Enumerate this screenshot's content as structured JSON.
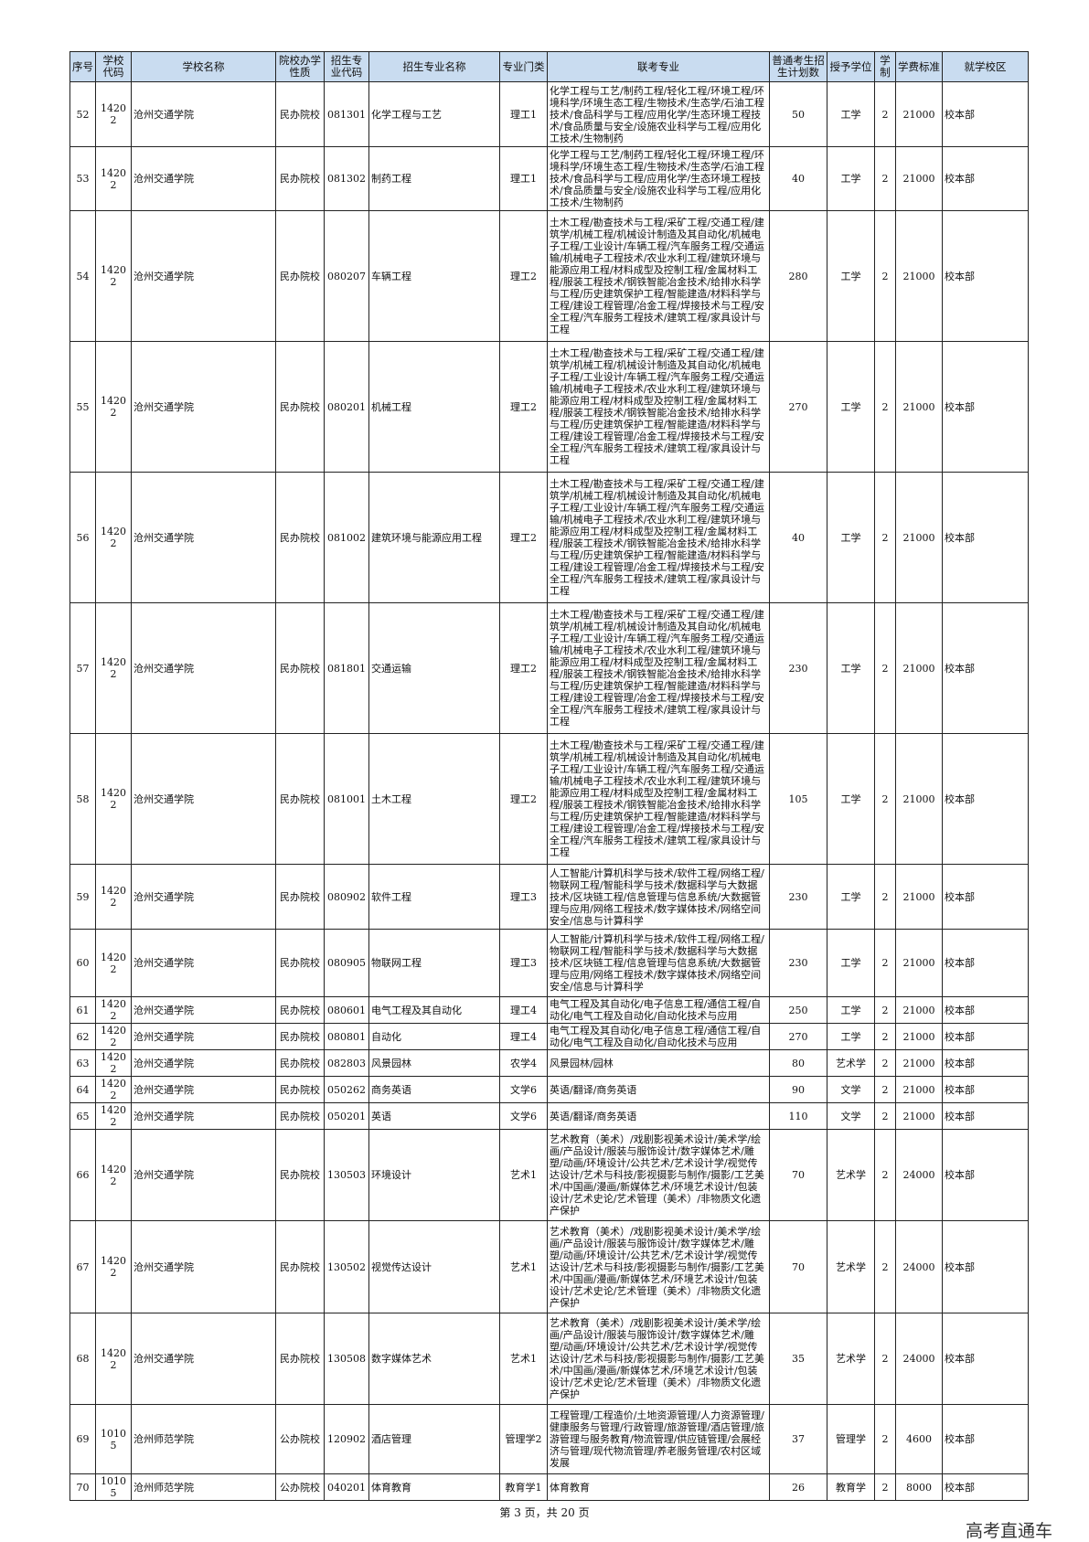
{
  "table": {
    "header": [
      "序号",
      "学校代码",
      "学校名称",
      "院校办学性质",
      "招生专业代码",
      "招生专业名称",
      "专业门类",
      "联考专业",
      "普通考生招生计划数",
      "授予学位",
      "学制",
      "学费标准",
      "就学校区"
    ],
    "rows": [
      [
        "52",
        "14202",
        "沧州交通学院",
        "民办院校",
        "081301",
        "化学工程与工艺",
        "理工1",
        "化学工程与工艺/制药工程/轻化工程/环境工程/环境科学/环境生态工程/生物技术/生态学/石油工程技术/食品科学与工程/应用化学/生态环境工程技术/食品质量与安全/设施农业科学与工程/应用化工技术/生物制药",
        "50",
        "工学",
        "2",
        "21000",
        "校本部"
      ],
      [
        "53",
        "14202",
        "沧州交通学院",
        "民办院校",
        "081302",
        "制药工程",
        "理工1",
        "化学工程与工艺/制药工程/轻化工程/环境工程/环境科学/环境生态工程/生物技术/生态学/石油工程技术/食品科学与工程/应用化学/生态环境工程技术/食品质量与安全/设施农业科学与工程/应用化工技术/生物制药",
        "40",
        "工学",
        "2",
        "21000",
        "校本部"
      ],
      [
        "54",
        "14202",
        "沧州交通学院",
        "民办院校",
        "080207",
        "车辆工程",
        "理工2",
        "土木工程/勘查技术与工程/采矿工程/交通工程/建筑学/机械工程/机械设计制造及其自动化/机械电子工程/工业设计/车辆工程/汽车服务工程/交通运输/机械电子工程技术/农业水利工程/建筑环境与能源应用工程/材料成型及控制工程/金属材料工程/服装工程技术/钢铁智能冶金技术/给排水科学与工程/历史建筑保护工程/智能建造/材料科学与工程/建设工程管理/冶金工程/焊接技术与工程/安全工程/汽车服务工程技术/建筑工程/家具设计与工程",
        "280",
        "工学",
        "2",
        "21000",
        "校本部"
      ],
      [
        "55",
        "14202",
        "沧州交通学院",
        "民办院校",
        "080201",
        "机械工程",
        "理工2",
        "土木工程/勘查技术与工程/采矿工程/交通工程/建筑学/机械工程/机械设计制造及其自动化/机械电子工程/工业设计/车辆工程/汽车服务工程/交通运输/机械电子工程技术/农业水利工程/建筑环境与能源应用工程/材料成型及控制工程/金属材料工程/服装工程技术/钢铁智能冶金技术/给排水科学与工程/历史建筑保护工程/智能建造/材料科学与工程/建设工程管理/冶金工程/焊接技术与工程/安全工程/汽车服务工程技术/建筑工程/家具设计与工程",
        "270",
        "工学",
        "2",
        "21000",
        "校本部"
      ],
      [
        "56",
        "14202",
        "沧州交通学院",
        "民办院校",
        "081002",
        "建筑环境与能源应用工程",
        "理工2",
        "土木工程/勘查技术与工程/采矿工程/交通工程/建筑学/机械工程/机械设计制造及其自动化/机械电子工程/工业设计/车辆工程/汽车服务工程/交通运输/机械电子工程技术/农业水利工程/建筑环境与能源应用工程/材料成型及控制工程/金属材料工程/服装工程技术/钢铁智能冶金技术/给排水科学与工程/历史建筑保护工程/智能建造/材料科学与工程/建设工程管理/冶金工程/焊接技术与工程/安全工程/汽车服务工程技术/建筑工程/家具设计与工程",
        "40",
        "工学",
        "2",
        "21000",
        "校本部"
      ],
      [
        "57",
        "14202",
        "沧州交通学院",
        "民办院校",
        "081801",
        "交通运输",
        "理工2",
        "土木工程/勘查技术与工程/采矿工程/交通工程/建筑学/机械工程/机械设计制造及其自动化/机械电子工程/工业设计/车辆工程/汽车服务工程/交通运输/机械电子工程技术/农业水利工程/建筑环境与能源应用工程/材料成型及控制工程/金属材料工程/服装工程技术/钢铁智能冶金技术/给排水科学与工程/历史建筑保护工程/智能建造/材料科学与工程/建设工程管理/冶金工程/焊接技术与工程/安全工程/汽车服务工程技术/建筑工程/家具设计与工程",
        "230",
        "工学",
        "2",
        "21000",
        "校本部"
      ],
      [
        "58",
        "14202",
        "沧州交通学院",
        "民办院校",
        "081001",
        "土木工程",
        "理工2",
        "土木工程/勘查技术与工程/采矿工程/交通工程/建筑学/机械工程/机械设计制造及其自动化/机械电子工程/工业设计/车辆工程/汽车服务工程/交通运输/机械电子工程技术/农业水利工程/建筑环境与能源应用工程/材料成型及控制工程/金属材料工程/服装工程技术/钢铁智能冶金技术/给排水科学与工程/历史建筑保护工程/智能建造/材料科学与工程/建设工程管理/冶金工程/焊接技术与工程/安全工程/汽车服务工程技术/建筑工程/家具设计与工程",
        "105",
        "工学",
        "2",
        "21000",
        "校本部"
      ],
      [
        "59",
        "14202",
        "沧州交通学院",
        "民办院校",
        "080902",
        "软件工程",
        "理工3",
        "人工智能/计算机科学与技术/软件工程/网络工程/物联网工程/智能科学与技术/数据科学与大数据技术/区块链工程/信息管理与信息系统/大数据管理与应用/网络工程技术/数字媒体技术/网络空间安全/信息与计算科学",
        "230",
        "工学",
        "2",
        "21000",
        "校本部"
      ],
      [
        "60",
        "14202",
        "沧州交通学院",
        "民办院校",
        "080905",
        "物联网工程",
        "理工3",
        "人工智能/计算机科学与技术/软件工程/网络工程/物联网工程/智能科学与技术/数据科学与大数据技术/区块链工程/信息管理与信息系统/大数据管理与应用/网络工程技术/数字媒体技术/网络空间安全/信息与计算科学",
        "230",
        "工学",
        "2",
        "21000",
        "校本部"
      ],
      [
        "61",
        "14202",
        "沧州交通学院",
        "民办院校",
        "080601",
        "电气工程及其自动化",
        "理工4",
        "电气工程及其自动化/电子信息工程/通信工程/自动化/电气工程及自动化/自动化技术与应用",
        "250",
        "工学",
        "2",
        "21000",
        "校本部"
      ],
      [
        "62",
        "14202",
        "沧州交通学院",
        "民办院校",
        "080801",
        "自动化",
        "理工4",
        "电气工程及其自动化/电子信息工程/通信工程/自动化/电气工程及自动化/自动化技术与应用",
        "270",
        "工学",
        "2",
        "21000",
        "校本部"
      ],
      [
        "63",
        "14202",
        "沧州交通学院",
        "民办院校",
        "082803",
        "风景园林",
        "农学4",
        "风景园林/园林",
        "80",
        "艺术学",
        "2",
        "21000",
        "校本部"
      ],
      [
        "64",
        "14202",
        "沧州交通学院",
        "民办院校",
        "050262",
        "商务英语",
        "文学6",
        "英语/翻译/商务英语",
        "90",
        "文学",
        "2",
        "21000",
        "校本部"
      ],
      [
        "65",
        "14202",
        "沧州交通学院",
        "民办院校",
        "050201",
        "英语",
        "文学6",
        "英语/翻译/商务英语",
        "110",
        "文学",
        "2",
        "21000",
        "校本部"
      ],
      [
        "66",
        "14202",
        "沧州交通学院",
        "民办院校",
        "130503",
        "环境设计",
        "艺术1",
        "艺术教育（美术）/戏剧影视美术设计/美术学/绘画/产品设计/服装与服饰设计/数字媒体艺术/雕塑/动画/环境设计/公共艺术/艺术设计学/视觉传达设计/艺术与科技/影视摄影与制作/摄影/工艺美术/中国画/漫画/新媒体艺术/环境艺术设计/包装设计/艺术史论/艺术管理（美术）/非物质文化遗产保护",
        "70",
        "艺术学",
        "2",
        "24000",
        "校本部"
      ],
      [
        "67",
        "14202",
        "沧州交通学院",
        "民办院校",
        "130502",
        "视觉传达设计",
        "艺术1",
        "艺术教育（美术）/戏剧影视美术设计/美术学/绘画/产品设计/服装与服饰设计/数字媒体艺术/雕塑/动画/环境设计/公共艺术/艺术设计学/视觉传达设计/艺术与科技/影视摄影与制作/摄影/工艺美术/中国画/漫画/新媒体艺术/环境艺术设计/包装设计/艺术史论/艺术管理（美术）/非物质文化遗产保护",
        "70",
        "艺术学",
        "2",
        "24000",
        "校本部"
      ],
      [
        "68",
        "14202",
        "沧州交通学院",
        "民办院校",
        "130508",
        "数字媒体艺术",
        "艺术1",
        "艺术教育（美术）/戏剧影视美术设计/美术学/绘画/产品设计/服装与服饰设计/数字媒体艺术/雕塑/动画/环境设计/公共艺术/艺术设计学/视觉传达设计/艺术与科技/影视摄影与制作/摄影/工艺美术/中国画/漫画/新媒体艺术/环境艺术设计/包装设计/艺术史论/艺术管理（美术）/非物质文化遗产保护",
        "35",
        "艺术学",
        "2",
        "24000",
        "校本部"
      ],
      [
        "69",
        "10105",
        "沧州师范学院",
        "公办院校",
        "120902",
        "酒店管理",
        "管理学2",
        "工程管理/工程造价/土地资源管理/人力资源管理/健康服务与管理/行政管理/旅游管理/酒店管理/旅游管理与服务教育/物流管理/供应链管理/会展经济与管理/现代物流管理/养老服务管理/农村区域发展",
        "37",
        "管理学",
        "2",
        "4600",
        "校本部"
      ],
      [
        "70",
        "10105",
        "沧州师范学院",
        "公办院校",
        "040201",
        "体育教育",
        "教育学1",
        "体育教育",
        "26",
        "教育学",
        "2",
        "8000",
        "校本部"
      ]
    ]
  },
  "footer": "第 3 页，共 20 页",
  "watermark": "高考直通车"
}
